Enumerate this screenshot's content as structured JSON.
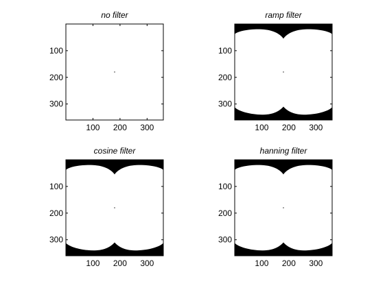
{
  "chart_data": [
    {
      "type": "heatmap",
      "title": "no filter",
      "colormap": "gray-binary",
      "image_extent": [
        0,
        360,
        0,
        360
      ],
      "x_ticks": [
        100,
        200,
        300
      ],
      "y_ticks": [
        100,
        200,
        300
      ],
      "y_direction": "reversed",
      "grid": false,
      "content": "white field with a single dark pixel at the center (~180, 180)"
    },
    {
      "type": "heatmap",
      "title": "ramp filter",
      "colormap": "gray-binary",
      "image_extent": [
        0,
        360,
        0,
        360
      ],
      "x_ticks": [
        100,
        200,
        300
      ],
      "y_ticks": [
        100,
        200,
        300
      ],
      "y_direction": "reversed",
      "grid": false,
      "content": "white two-lobed region on black background; black corners with a notch at the top and bottom centers"
    },
    {
      "type": "heatmap",
      "title": "cosine filter",
      "colormap": "gray-binary",
      "image_extent": [
        0,
        360,
        0,
        360
      ],
      "x_ticks": [
        100,
        200,
        300
      ],
      "y_ticks": [
        100,
        200,
        300
      ],
      "y_direction": "reversed",
      "grid": false,
      "content": "white two-lobed region on black background; black corners with a notch at the top and bottom centers"
    },
    {
      "type": "heatmap",
      "title": "hanning filter",
      "colormap": "gray-binary",
      "image_extent": [
        0,
        360,
        0,
        360
      ],
      "x_ticks": [
        100,
        200,
        300
      ],
      "y_ticks": [
        100,
        200,
        300
      ],
      "y_direction": "reversed",
      "grid": false,
      "content": "white two-lobed region on black background; black corners with a notch at the top and bottom centers"
    }
  ],
  "colors": {
    "background": "#ffffff",
    "foreground": "#000000",
    "axes": "#000000"
  }
}
